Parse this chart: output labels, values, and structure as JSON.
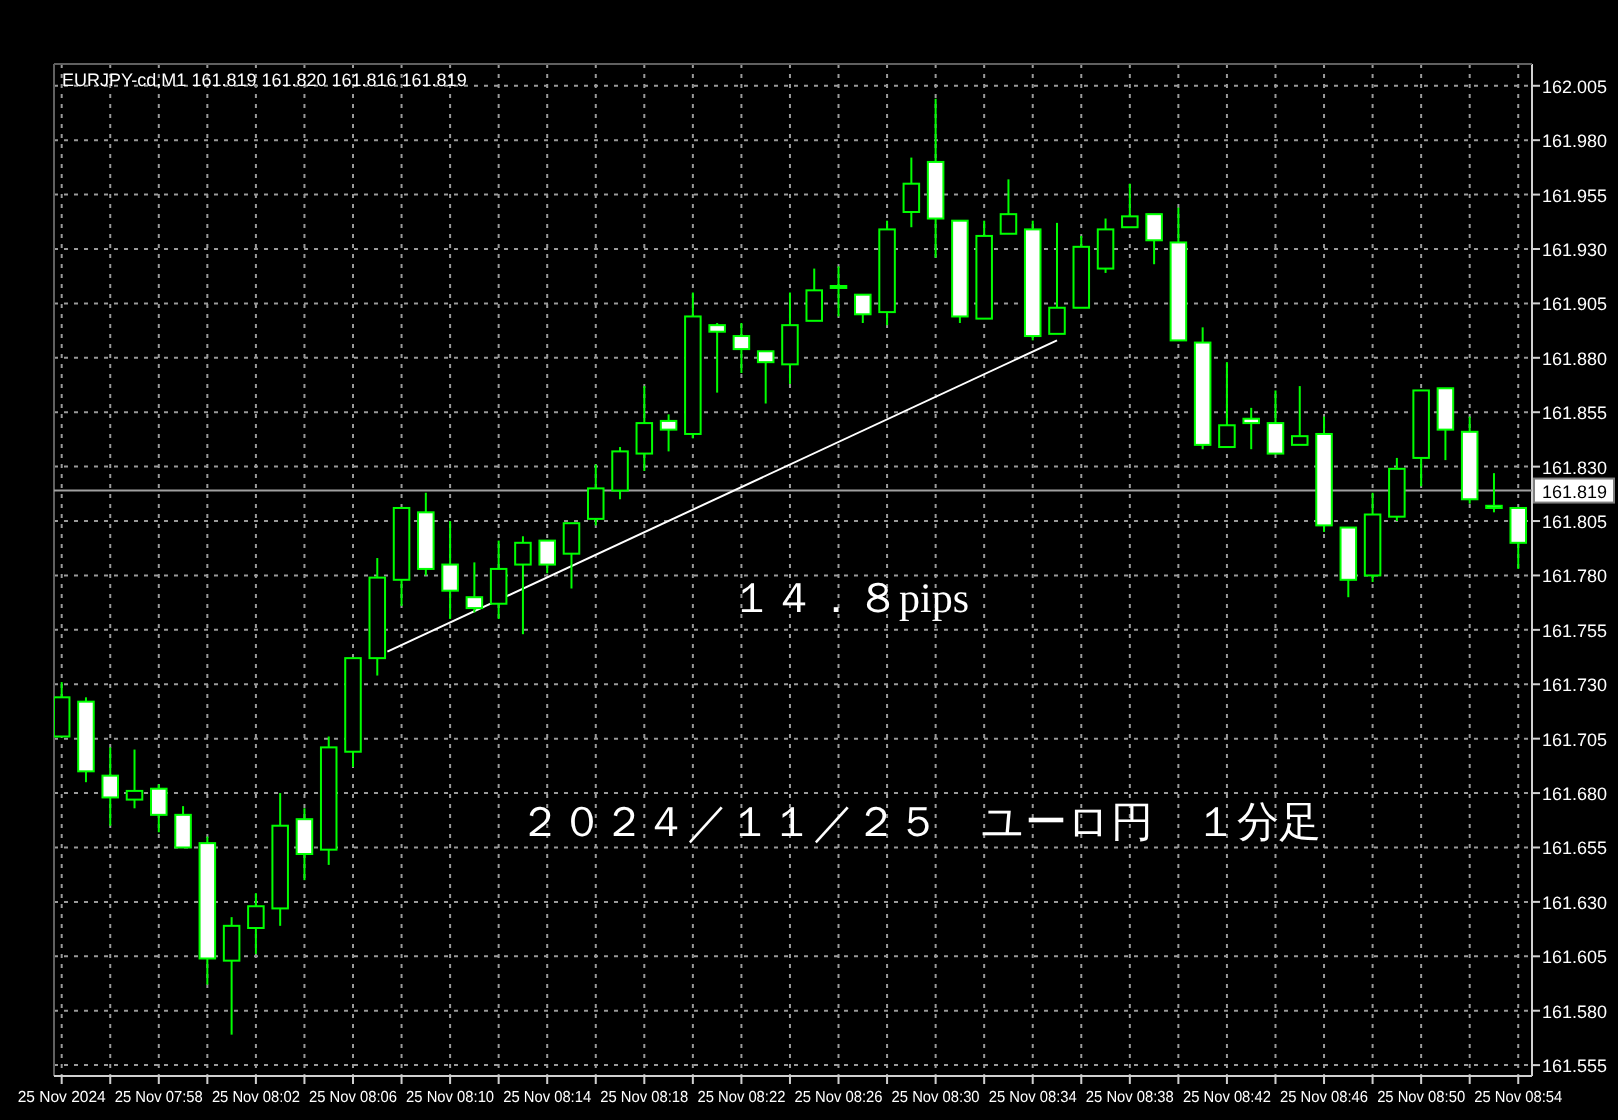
{
  "chart_data": {
    "type": "candlestick",
    "title": "EURJPY-cd,M1  161.819 161.820 161.816 161.819",
    "color": "#00ff00",
    "grid": true,
    "x": [
      "2024-11-25T07:54",
      "2024-11-25T07:55",
      "2024-11-25T07:56",
      "2024-11-25T07:57",
      "2024-11-25T07:58",
      "2024-11-25T07:59",
      "2024-11-25T08:00",
      "2024-11-25T08:01",
      "2024-11-25T08:02",
      "2024-11-25T08:03",
      "2024-11-25T08:04",
      "2024-11-25T08:05",
      "2024-11-25T08:06",
      "2024-11-25T08:07",
      "2024-11-25T08:08",
      "2024-11-25T08:09",
      "2024-11-25T08:10",
      "2024-11-25T08:11",
      "2024-11-25T08:12",
      "2024-11-25T08:13",
      "2024-11-25T08:14",
      "2024-11-25T08:15",
      "2024-11-25T08:16",
      "2024-11-25T08:17",
      "2024-11-25T08:18",
      "2024-11-25T08:19",
      "2024-11-25T08:20",
      "2024-11-25T08:21",
      "2024-11-25T08:22",
      "2024-11-25T08:23",
      "2024-11-25T08:24",
      "2024-11-25T08:25",
      "2024-11-25T08:26",
      "2024-11-25T08:27",
      "2024-11-25T08:28",
      "2024-11-25T08:29",
      "2024-11-25T08:30",
      "2024-11-25T08:31",
      "2024-11-25T08:32",
      "2024-11-25T08:33",
      "2024-11-25T08:34",
      "2024-11-25T08:35",
      "2024-11-25T08:36",
      "2024-11-25T08:37",
      "2024-11-25T08:38",
      "2024-11-25T08:39",
      "2024-11-25T08:40",
      "2024-11-25T08:41",
      "2024-11-25T08:42",
      "2024-11-25T08:43",
      "2024-11-25T08:44",
      "2024-11-25T08:45",
      "2024-11-25T08:46",
      "2024-11-25T08:47",
      "2024-11-25T08:48",
      "2024-11-25T08:49",
      "2024-11-25T08:50",
      "2024-11-25T08:51",
      "2024-11-25T08:52",
      "2024-11-25T08:53",
      "2024-11-25T08:54"
    ],
    "ohlc": [
      [
        161.706,
        161.731,
        161.706,
        161.724
      ],
      [
        161.722,
        161.724,
        161.685,
        161.69
      ],
      [
        161.688,
        161.701,
        161.665,
        161.678
      ],
      [
        161.677,
        161.7,
        161.673,
        161.681
      ],
      [
        161.682,
        161.684,
        161.662,
        161.67
      ],
      [
        161.67,
        161.674,
        161.655,
        161.655
      ],
      [
        161.657,
        161.66,
        161.592,
        161.604
      ],
      [
        161.603,
        161.623,
        161.569,
        161.619
      ],
      [
        161.618,
        161.634,
        161.606,
        161.628
      ],
      [
        161.627,
        161.68,
        161.619,
        161.665
      ],
      [
        161.668,
        161.673,
        161.64,
        161.652
      ],
      [
        161.654,
        161.706,
        161.647,
        161.701
      ],
      [
        161.699,
        161.742,
        161.692,
        161.742
      ],
      [
        161.742,
        161.788,
        161.734,
        161.779
      ],
      [
        161.778,
        161.811,
        161.766,
        161.811
      ],
      [
        161.809,
        161.818,
        161.78,
        161.783
      ],
      [
        161.785,
        161.805,
        161.76,
        161.773
      ],
      [
        161.77,
        161.786,
        161.763,
        161.765
      ],
      [
        161.767,
        161.796,
        161.76,
        161.783
      ],
      [
        161.785,
        161.798,
        161.753,
        161.795
      ],
      [
        161.796,
        161.796,
        161.781,
        161.785
      ],
      [
        161.79,
        161.804,
        161.774,
        161.804
      ],
      [
        161.806,
        161.831,
        161.803,
        161.82
      ],
      [
        161.819,
        161.839,
        161.815,
        161.837
      ],
      [
        161.836,
        161.867,
        161.828,
        161.85
      ],
      [
        161.851,
        161.854,
        161.837,
        161.847
      ],
      [
        161.845,
        161.91,
        161.843,
        161.899
      ],
      [
        161.895,
        161.896,
        161.864,
        161.892
      ],
      [
        161.89,
        161.896,
        161.873,
        161.884
      ],
      [
        161.883,
        161.883,
        161.859,
        161.878
      ],
      [
        161.877,
        161.91,
        161.868,
        161.895
      ],
      [
        161.897,
        161.921,
        161.897,
        161.911
      ],
      [
        161.913,
        161.922,
        161.899,
        161.913
      ],
      [
        161.909,
        161.909,
        161.896,
        161.9
      ],
      [
        161.901,
        161.943,
        161.895,
        161.939
      ],
      [
        161.947,
        161.972,
        161.94,
        161.96
      ],
      [
        161.97,
        161.999,
        161.926,
        161.944
      ],
      [
        161.943,
        161.943,
        161.896,
        161.899
      ],
      [
        161.898,
        161.943,
        161.898,
        161.936
      ],
      [
        161.937,
        161.962,
        161.937,
        161.946
      ],
      [
        161.939,
        161.943,
        161.888,
        161.89
      ],
      [
        161.891,
        161.942,
        161.891,
        161.903
      ],
      [
        161.903,
        161.936,
        161.903,
        161.931
      ],
      [
        161.921,
        161.944,
        161.919,
        161.939
      ],
      [
        161.94,
        161.96,
        161.94,
        161.945
      ],
      [
        161.946,
        161.946,
        161.923,
        161.934
      ],
      [
        161.933,
        161.949,
        161.888,
        161.888
      ],
      [
        161.887,
        161.894,
        161.838,
        161.84
      ],
      [
        161.839,
        161.878,
        161.839,
        161.849
      ],
      [
        161.852,
        161.857,
        161.838,
        161.85
      ],
      [
        161.85,
        161.865,
        161.836,
        161.836
      ],
      [
        161.84,
        161.867,
        161.84,
        161.844
      ],
      [
        161.845,
        161.853,
        161.8,
        161.803
      ],
      [
        161.802,
        161.802,
        161.77,
        161.778
      ],
      [
        161.78,
        161.818,
        161.777,
        161.808
      ],
      [
        161.807,
        161.834,
        161.805,
        161.829
      ],
      [
        161.834,
        161.865,
        161.821,
        161.865
      ],
      [
        161.866,
        161.866,
        161.833,
        161.847
      ],
      [
        161.846,
        161.853,
        161.813,
        161.815
      ],
      [
        161.812,
        161.827,
        161.809,
        161.811
      ],
      [
        161.811,
        161.811,
        161.783,
        161.795
      ]
    ],
    "series": [
      {
        "type": "line",
        "color": "#ffffff",
        "x": [
          "2024-11-25T08:07:25",
          "2024-11-25T08:35"
        ],
        "values": [
          161.745,
          161.888
        ]
      }
    ],
    "ref_lines": [
      {
        "axis": "y",
        "value": 161.819,
        "label": "161.819",
        "color": "#a0a0a0"
      }
    ],
    "annotations": [
      "１４．８pips",
      "２０２４／１１／２５　ユーロ円　１分足"
    ],
    "xlim": [
      "2024-11-25T07:53:41",
      "2024-11-25T08:54:34"
    ],
    "ylim": [
      161.55,
      162.015
    ],
    "xticks": [
      {
        "value": "2024-11-25T07:54",
        "label": "25 Nov 2024"
      },
      {
        "value": "2024-11-25T07:56",
        "label": null
      },
      {
        "value": "2024-11-25T07:58",
        "label": "25 Nov 07:58"
      },
      {
        "value": "2024-11-25T08:00",
        "label": null
      },
      {
        "value": "2024-11-25T08:02",
        "label": "25 Nov 08:02"
      },
      {
        "value": "2024-11-25T08:04",
        "label": null
      },
      {
        "value": "2024-11-25T08:06",
        "label": "25 Nov 08:06"
      },
      {
        "value": "2024-11-25T08:08",
        "label": null
      },
      {
        "value": "2024-11-25T08:10",
        "label": "25 Nov 08:10"
      },
      {
        "value": "2024-11-25T08:12",
        "label": null
      },
      {
        "value": "2024-11-25T08:14",
        "label": "25 Nov 08:14"
      },
      {
        "value": "2024-11-25T08:16",
        "label": null
      },
      {
        "value": "2024-11-25T08:18",
        "label": "25 Nov 08:18"
      },
      {
        "value": "2024-11-25T08:20",
        "label": null
      },
      {
        "value": "2024-11-25T08:22",
        "label": "25 Nov 08:22"
      },
      {
        "value": "2024-11-25T08:24",
        "label": null
      },
      {
        "value": "2024-11-25T08:26",
        "label": "25 Nov 08:26"
      },
      {
        "value": "2024-11-25T08:28",
        "label": null
      },
      {
        "value": "2024-11-25T08:30",
        "label": "25 Nov 08:30"
      },
      {
        "value": "2024-11-25T08:32",
        "label": null
      },
      {
        "value": "2024-11-25T08:34",
        "label": "25 Nov 08:34"
      },
      {
        "value": "2024-11-25T08:36",
        "label": null
      },
      {
        "value": "2024-11-25T08:38",
        "label": "25 Nov 08:38"
      },
      {
        "value": "2024-11-25T08:40",
        "label": null
      },
      {
        "value": "2024-11-25T08:42",
        "label": "25 Nov 08:42"
      },
      {
        "value": "2024-11-25T08:44",
        "label": null
      },
      {
        "value": "2024-11-25T08:46",
        "label": "25 Nov 08:46"
      },
      {
        "value": "2024-11-25T08:48",
        "label": null
      },
      {
        "value": "2024-11-25T08:50",
        "label": "25 Nov 08:50"
      },
      {
        "value": "2024-11-25T08:52",
        "label": null
      },
      {
        "value": "2024-11-25T08:54",
        "label": "25 Nov 08:54"
      }
    ],
    "yticks": [
      161.555,
      {
        "value": 161.58,
        "label": "161.580"
      },
      161.605,
      {
        "value": 161.63,
        "label": "161.630"
      },
      161.655,
      {
        "value": 161.68,
        "label": "161.680"
      },
      161.705,
      {
        "value": 161.73,
        "label": "161.730"
      },
      161.755,
      {
        "value": 161.78,
        "label": "161.780"
      },
      161.805,
      {
        "value": 161.83,
        "label": "161.830"
      },
      161.855,
      {
        "value": 161.88,
        "label": "161.880"
      },
      161.905,
      {
        "value": 161.93,
        "label": "161.930"
      },
      161.955,
      {
        "value": 161.98,
        "label": "161.980"
      },
      162.005
    ]
  }
}
